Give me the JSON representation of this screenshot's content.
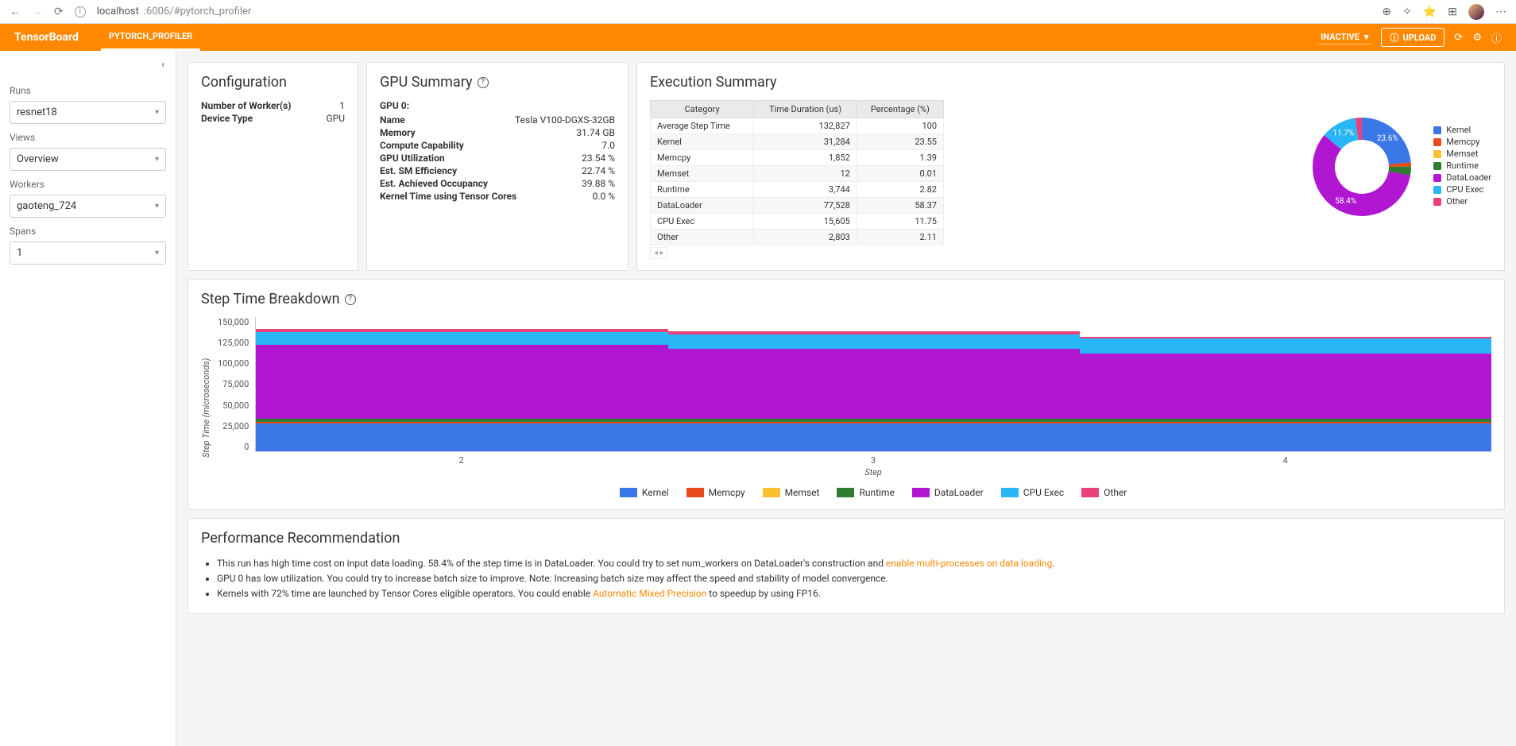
{
  "browser": {
    "url_prefix": "localhost",
    "url_rest": ":6006/#pytorch_profiler"
  },
  "topbar": {
    "brand": "TensorBoard",
    "tab": "PYTORCH_PROFILER",
    "inactive": "INACTIVE",
    "upload": "UPLOAD"
  },
  "sidebar": {
    "runs_label": "Runs",
    "runs_value": "resnet18",
    "views_label": "Views",
    "views_value": "Overview",
    "workers_label": "Workers",
    "workers_value": "gaoteng_724",
    "spans_label": "Spans",
    "spans_value": "1"
  },
  "config": {
    "title": "Configuration",
    "rows": [
      {
        "k": "Number of Worker(s)",
        "v": "1"
      },
      {
        "k": "Device Type",
        "v": "GPU"
      }
    ]
  },
  "gpu": {
    "title": "GPU Summary",
    "head": "GPU 0:",
    "rows": [
      {
        "k": "Name",
        "v": "Tesla V100-DGXS-32GB"
      },
      {
        "k": "Memory",
        "v": "31.74 GB"
      },
      {
        "k": "Compute Capability",
        "v": "7.0"
      },
      {
        "k": "GPU Utilization",
        "v": "23.54 %"
      },
      {
        "k": "Est. SM Efficiency",
        "v": "22.74 %"
      },
      {
        "k": "Est. Achieved Occupancy",
        "v": "39.88 %"
      },
      {
        "k": "Kernel Time using Tensor Cores",
        "v": "0.0 %"
      }
    ]
  },
  "exec": {
    "title": "Execution Summary",
    "headers": [
      "Category",
      "Time Duration (us)",
      "Percentage (%)"
    ],
    "rows": [
      [
        "Average Step Time",
        "132,827",
        "100"
      ],
      [
        "Kernel",
        "31,284",
        "23.55"
      ],
      [
        "Memcpy",
        "1,852",
        "1.39"
      ],
      [
        "Memset",
        "12",
        "0.01"
      ],
      [
        "Runtime",
        "3,744",
        "2.82"
      ],
      [
        "DataLoader",
        "77,528",
        "58.37"
      ],
      [
        "CPU Exec",
        "15,605",
        "11.75"
      ],
      [
        "Other",
        "2,803",
        "2.11"
      ]
    ],
    "donut": {
      "slices": [
        {
          "label": "Kernel",
          "pct": 23.55,
          "color": "#3b78e7",
          "show": "23.6%"
        },
        {
          "label": "Memcpy",
          "pct": 1.39,
          "color": "#e64a19",
          "show": ""
        },
        {
          "label": "Memset",
          "pct": 0.01,
          "color": "#fbc02d",
          "show": ""
        },
        {
          "label": "Runtime",
          "pct": 2.82,
          "color": "#2e7d32",
          "show": ""
        },
        {
          "label": "DataLoader",
          "pct": 58.37,
          "color": "#b117d1",
          "show": "58.4%"
        },
        {
          "label": "CPU Exec",
          "pct": 11.75,
          "color": "#29b6f6",
          "show": "11.7%"
        },
        {
          "label": "Other",
          "pct": 2.11,
          "color": "#ec407a",
          "show": ""
        }
      ],
      "inner_radius": 34,
      "outer_radius": 62
    }
  },
  "step": {
    "title": "Step Time Breakdown",
    "ylabel": "Step Time (microseconds)",
    "xlabel": "Step",
    "ymax": 150000,
    "yticks": [
      "150,000",
      "125,000",
      "100,000",
      "75,000",
      "50,000",
      "25,000",
      "0"
    ],
    "xcats": [
      "2",
      "3",
      "4"
    ],
    "series_order": [
      "Kernel",
      "Memcpy",
      "Memset",
      "Runtime",
      "DataLoader",
      "CPU Exec",
      "Other"
    ],
    "colors": {
      "Kernel": "#3b78e7",
      "Memcpy": "#e64a19",
      "Memset": "#fbc02d",
      "Runtime": "#2e7d32",
      "DataLoader": "#b117d1",
      "CPU Exec": "#29b6f6",
      "Other": "#ec407a"
    },
    "bars": [
      {
        "Kernel": 31000,
        "Memcpy": 1800,
        "Memset": 12,
        "Runtime": 4000,
        "DataLoader": 82000,
        "CPU Exec": 14000,
        "Other": 3500
      },
      {
        "Kernel": 31000,
        "Memcpy": 1800,
        "Memset": 12,
        "Runtime": 4000,
        "DataLoader": 78000,
        "CPU Exec": 16000,
        "Other": 3000
      },
      {
        "Kernel": 31000,
        "Memcpy": 1800,
        "Memset": 12,
        "Runtime": 4000,
        "DataLoader": 72000,
        "CPU Exec": 17000,
        "Other": 2500
      }
    ]
  },
  "rec": {
    "title": "Performance Recommendation",
    "items": [
      {
        "pre": "This run has high time cost on input data loading. 58.4% of the step time is in DataLoader. You could try to set num_workers on DataLoader's construction and ",
        "link": "enable multi-processes on data loading",
        "post": "."
      },
      {
        "pre": "GPU 0 has low utilization. You could try to increase batch size to improve. Note: Increasing batch size may affect the speed and stability of model convergence.",
        "link": "",
        "post": ""
      },
      {
        "pre": "Kernels with 72% time are launched by Tensor Cores eligible operators. You could enable ",
        "link": "Automatic Mixed Precision",
        "post": " to speedup by using FP16."
      }
    ]
  }
}
